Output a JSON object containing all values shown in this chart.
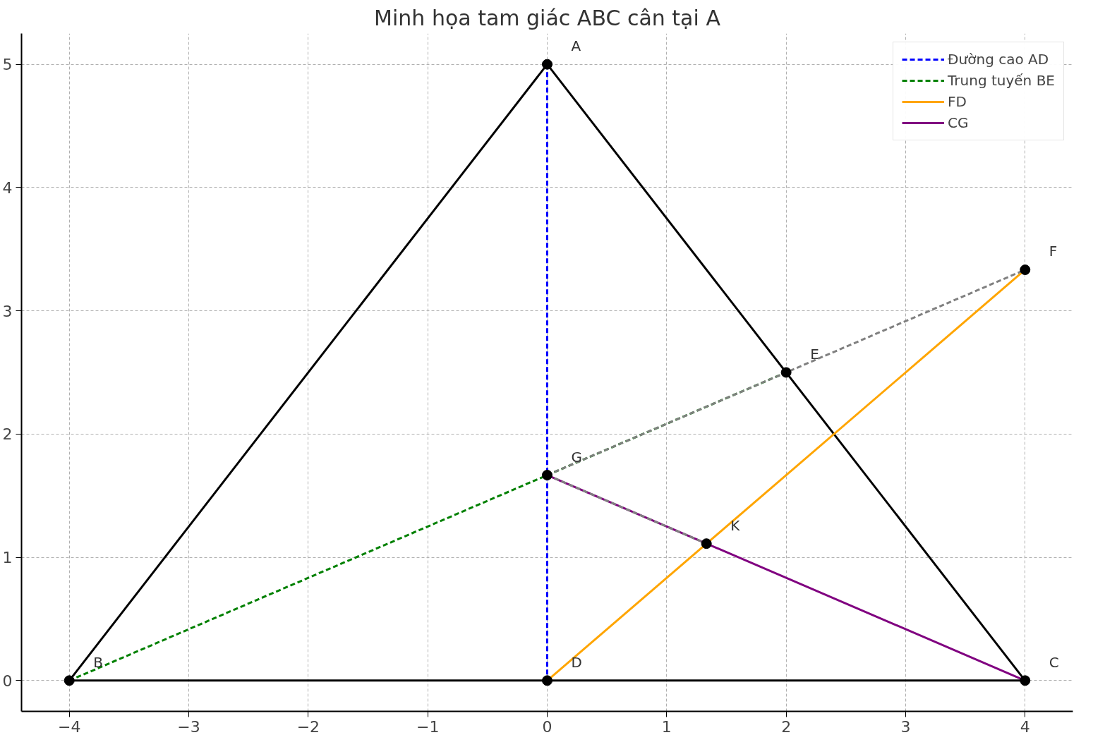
{
  "chart_data": {
    "type": "line",
    "title": "Minh họa tam giác ABC cân tại A",
    "xlim": [
      -4.4,
      4.4
    ],
    "ylim": [
      -0.25,
      5.25
    ],
    "xticks": [
      {
        "value": -4,
        "label": "−4"
      },
      {
        "value": -3,
        "label": "−3"
      },
      {
        "value": -2,
        "label": "−2"
      },
      {
        "value": -1,
        "label": "−1"
      },
      0,
      1,
      2,
      3,
      4
    ],
    "yticks": [
      0,
      1,
      2,
      3,
      4,
      5
    ],
    "grid": true,
    "legend": "top right",
    "series": [
      {
        "color": "#000000",
        "line_style": "solid",
        "marker": "none",
        "x": [
          -4,
          0
        ],
        "values": [
          0,
          5
        ]
      },
      {
        "color": "#000000",
        "line_style": "solid",
        "marker": "none",
        "x": [
          0,
          4
        ],
        "values": [
          5,
          0
        ]
      },
      {
        "color": "#000000",
        "line_style": "solid",
        "marker": "none",
        "x": [
          -4,
          4
        ],
        "values": [
          0,
          0
        ]
      },
      {
        "name": "Đường cao AD",
        "color": "#0000ff",
        "line_style": "dashed",
        "x": [
          0,
          0
        ],
        "values": [
          5,
          0
        ]
      },
      {
        "name": "Trung tuyến BE",
        "color": "#008000",
        "line_style": "dashed",
        "x": [
          -4,
          2
        ],
        "values": [
          0,
          2.5
        ]
      },
      {
        "name": "FD",
        "color": "#ffa500",
        "line_style": "solid",
        "x": [
          0,
          4
        ],
        "values": [
          0,
          3.333
        ]
      },
      {
        "name": "CG",
        "color": "#800080",
        "line_style": "solid",
        "x": [
          4,
          0
        ],
        "values": [
          0,
          1.667
        ]
      },
      {
        "color": "#808080",
        "line_style": "dashed",
        "x": [
          0,
          4
        ],
        "values": [
          1.667,
          3.333
        ]
      },
      {
        "color": "#808080",
        "line_style": "dashed",
        "x": [
          0,
          1.333
        ],
        "values": [
          1.667,
          1.111
        ]
      },
      {
        "type": "scatter",
        "color": "#000000",
        "marker": "circle",
        "x": [
          0,
          -4,
          4,
          0,
          2,
          4,
          0,
          1.333
        ],
        "values": [
          5,
          0,
          0,
          0,
          2.5,
          3.333,
          1.667,
          1.111
        ]
      }
    ],
    "annotations": [
      {
        "text": "A",
        "x": 0,
        "y": 5
      },
      {
        "text": "B",
        "x": -4,
        "y": 0
      },
      {
        "text": "C",
        "x": 4,
        "y": 0
      },
      {
        "text": "D",
        "x": 0,
        "y": 0
      },
      {
        "text": "E",
        "x": 2,
        "y": 2.5
      },
      {
        "text": "F",
        "x": 4,
        "y": 3.333
      },
      {
        "text": "G",
        "x": 0,
        "y": 1.667
      },
      {
        "text": "K",
        "x": 1.333,
        "y": 1.111
      }
    ]
  }
}
